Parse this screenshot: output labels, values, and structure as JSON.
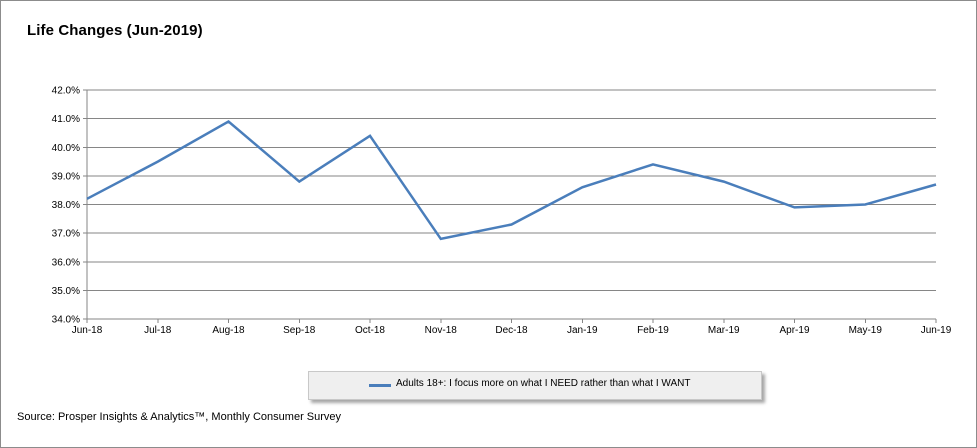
{
  "title": "Life Changes (Jun-2019)",
  "source": "Source: Prosper Insights & Analytics™, Monthly Consumer Survey",
  "chart_data": {
    "type": "line",
    "title": "Life Changes (Jun-2019)",
    "xlabel": "",
    "ylabel": "",
    "categories": [
      "Jun-18",
      "Jul-18",
      "Aug-18",
      "Sep-18",
      "Oct-18",
      "Nov-18",
      "Dec-18",
      "Jan-19",
      "Feb-19",
      "Mar-19",
      "Apr-19",
      "May-19",
      "Jun-19"
    ],
    "y_ticks": [
      "34.0%",
      "35.0%",
      "36.0%",
      "37.0%",
      "38.0%",
      "39.0%",
      "40.0%",
      "41.0%",
      "42.0%"
    ],
    "ylim": [
      34,
      42
    ],
    "grid": true,
    "legend_position": "bottom",
    "series": [
      {
        "name": "Adults 18+: I focus more on what I NEED rather than what I WANT",
        "color": "#4a7ebb",
        "values": [
          38.2,
          39.5,
          40.9,
          38.8,
          40.4,
          36.8,
          37.3,
          38.6,
          39.4,
          38.8,
          37.9,
          38.0,
          38.7
        ]
      }
    ]
  }
}
